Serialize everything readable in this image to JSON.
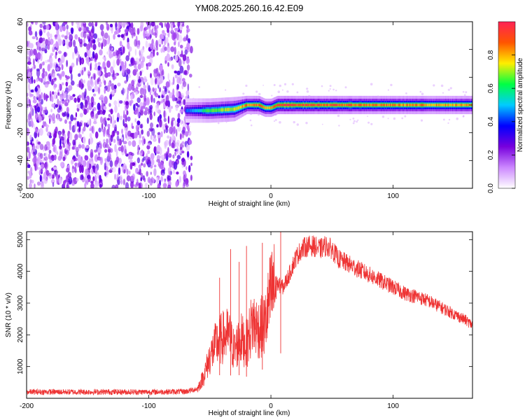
{
  "title": "YM08.2025.260.16.42.E09",
  "chart_data": [
    {
      "type": "heatmap",
      "title": "YM08.2025.260.16.42.E09",
      "xlabel": "Height of straight line (km)",
      "ylabel": "Frequency (Hz)",
      "xlim": [
        -200,
        165
      ],
      "ylim": [
        -60,
        60
      ],
      "xticks": [
        -200,
        -100,
        0,
        100
      ],
      "yticks": [
        60,
        40,
        20,
        0,
        -20,
        -40,
        -60
      ],
      "noise_region": {
        "x_range": [
          -200,
          -65
        ],
        "y_range": [
          -60,
          60
        ],
        "level": "0.0-0.3"
      },
      "signal_band": {
        "description": "narrow band near 0 Hz",
        "x": [
          -70,
          -50,
          -30,
          -20,
          -10,
          -5,
          0,
          5,
          10,
          50,
          100,
          165
        ],
        "center_hz": [
          -4,
          -4,
          -3,
          0,
          0,
          -2,
          -2,
          0,
          0,
          0,
          0,
          0
        ],
        "half_width_hz": [
          4,
          4,
          4,
          3,
          3,
          3,
          3,
          3,
          3,
          3,
          3,
          3
        ],
        "peak_amplitude": [
          0.45,
          0.7,
          0.8,
          0.9,
          0.95,
          0.85,
          0.85,
          0.95,
          1.0,
          0.95,
          0.9,
          0.85
        ]
      },
      "colorbar": {
        "label": "Normalized spectral amplitude",
        "range": [
          0,
          1
        ],
        "ticks": [
          "0.0",
          "0.2",
          "0.4",
          "0.6",
          "0.8"
        ],
        "tick_values": [
          0.0,
          0.2,
          0.4,
          0.6,
          0.8
        ],
        "colormap": [
          "#ffffff",
          "#cc88ff",
          "#7700dd",
          "#0000ff",
          "#00ccff",
          "#00ff44",
          "#ffee00",
          "#ff5500",
          "#ff2255"
        ]
      }
    },
    {
      "type": "line",
      "xlabel": "Height of straight line (km)",
      "ylabel": "SNR (10 * v/v)",
      "xlim": [
        -200,
        165
      ],
      "ylim": [
        0,
        5250
      ],
      "xticks": [
        -200,
        -100,
        0,
        100
      ],
      "yticks": [
        1000,
        2000,
        3000,
        4000,
        5000
      ],
      "series": [
        {
          "name": "SNR",
          "color": "#ee3333",
          "x": [
            -200,
            -150,
            -100,
            -70,
            -60,
            -55,
            -50,
            -45,
            -40,
            -35,
            -30,
            -25,
            -20,
            -15,
            -10,
            -5,
            0,
            5,
            10,
            15,
            20,
            25,
            30,
            35,
            40,
            45,
            50,
            55,
            60,
            70,
            80,
            90,
            100,
            110,
            120,
            130,
            140,
            150,
            160,
            165
          ],
          "y": [
            200,
            200,
            200,
            210,
            300,
            700,
            1300,
            1700,
            1900,
            2000,
            1500,
            1900,
            1700,
            2400,
            2200,
            2300,
            3300,
            3600,
            3500,
            3900,
            4400,
            4700,
            4800,
            4800,
            4700,
            4800,
            4700,
            4400,
            4300,
            4100,
            3900,
            3700,
            3500,
            3300,
            3200,
            3050,
            2850,
            2650,
            2450,
            2300
          ]
        }
      ],
      "spikes": [
        {
          "x": -42,
          "y": 3800
        },
        {
          "x": -33,
          "y": 4700
        },
        {
          "x": -26,
          "y": 4300
        },
        {
          "x": -20,
          "y": 4800
        },
        {
          "x": -7,
          "y": 4900
        },
        {
          "x": 8,
          "y": 5250
        }
      ]
    }
  ]
}
